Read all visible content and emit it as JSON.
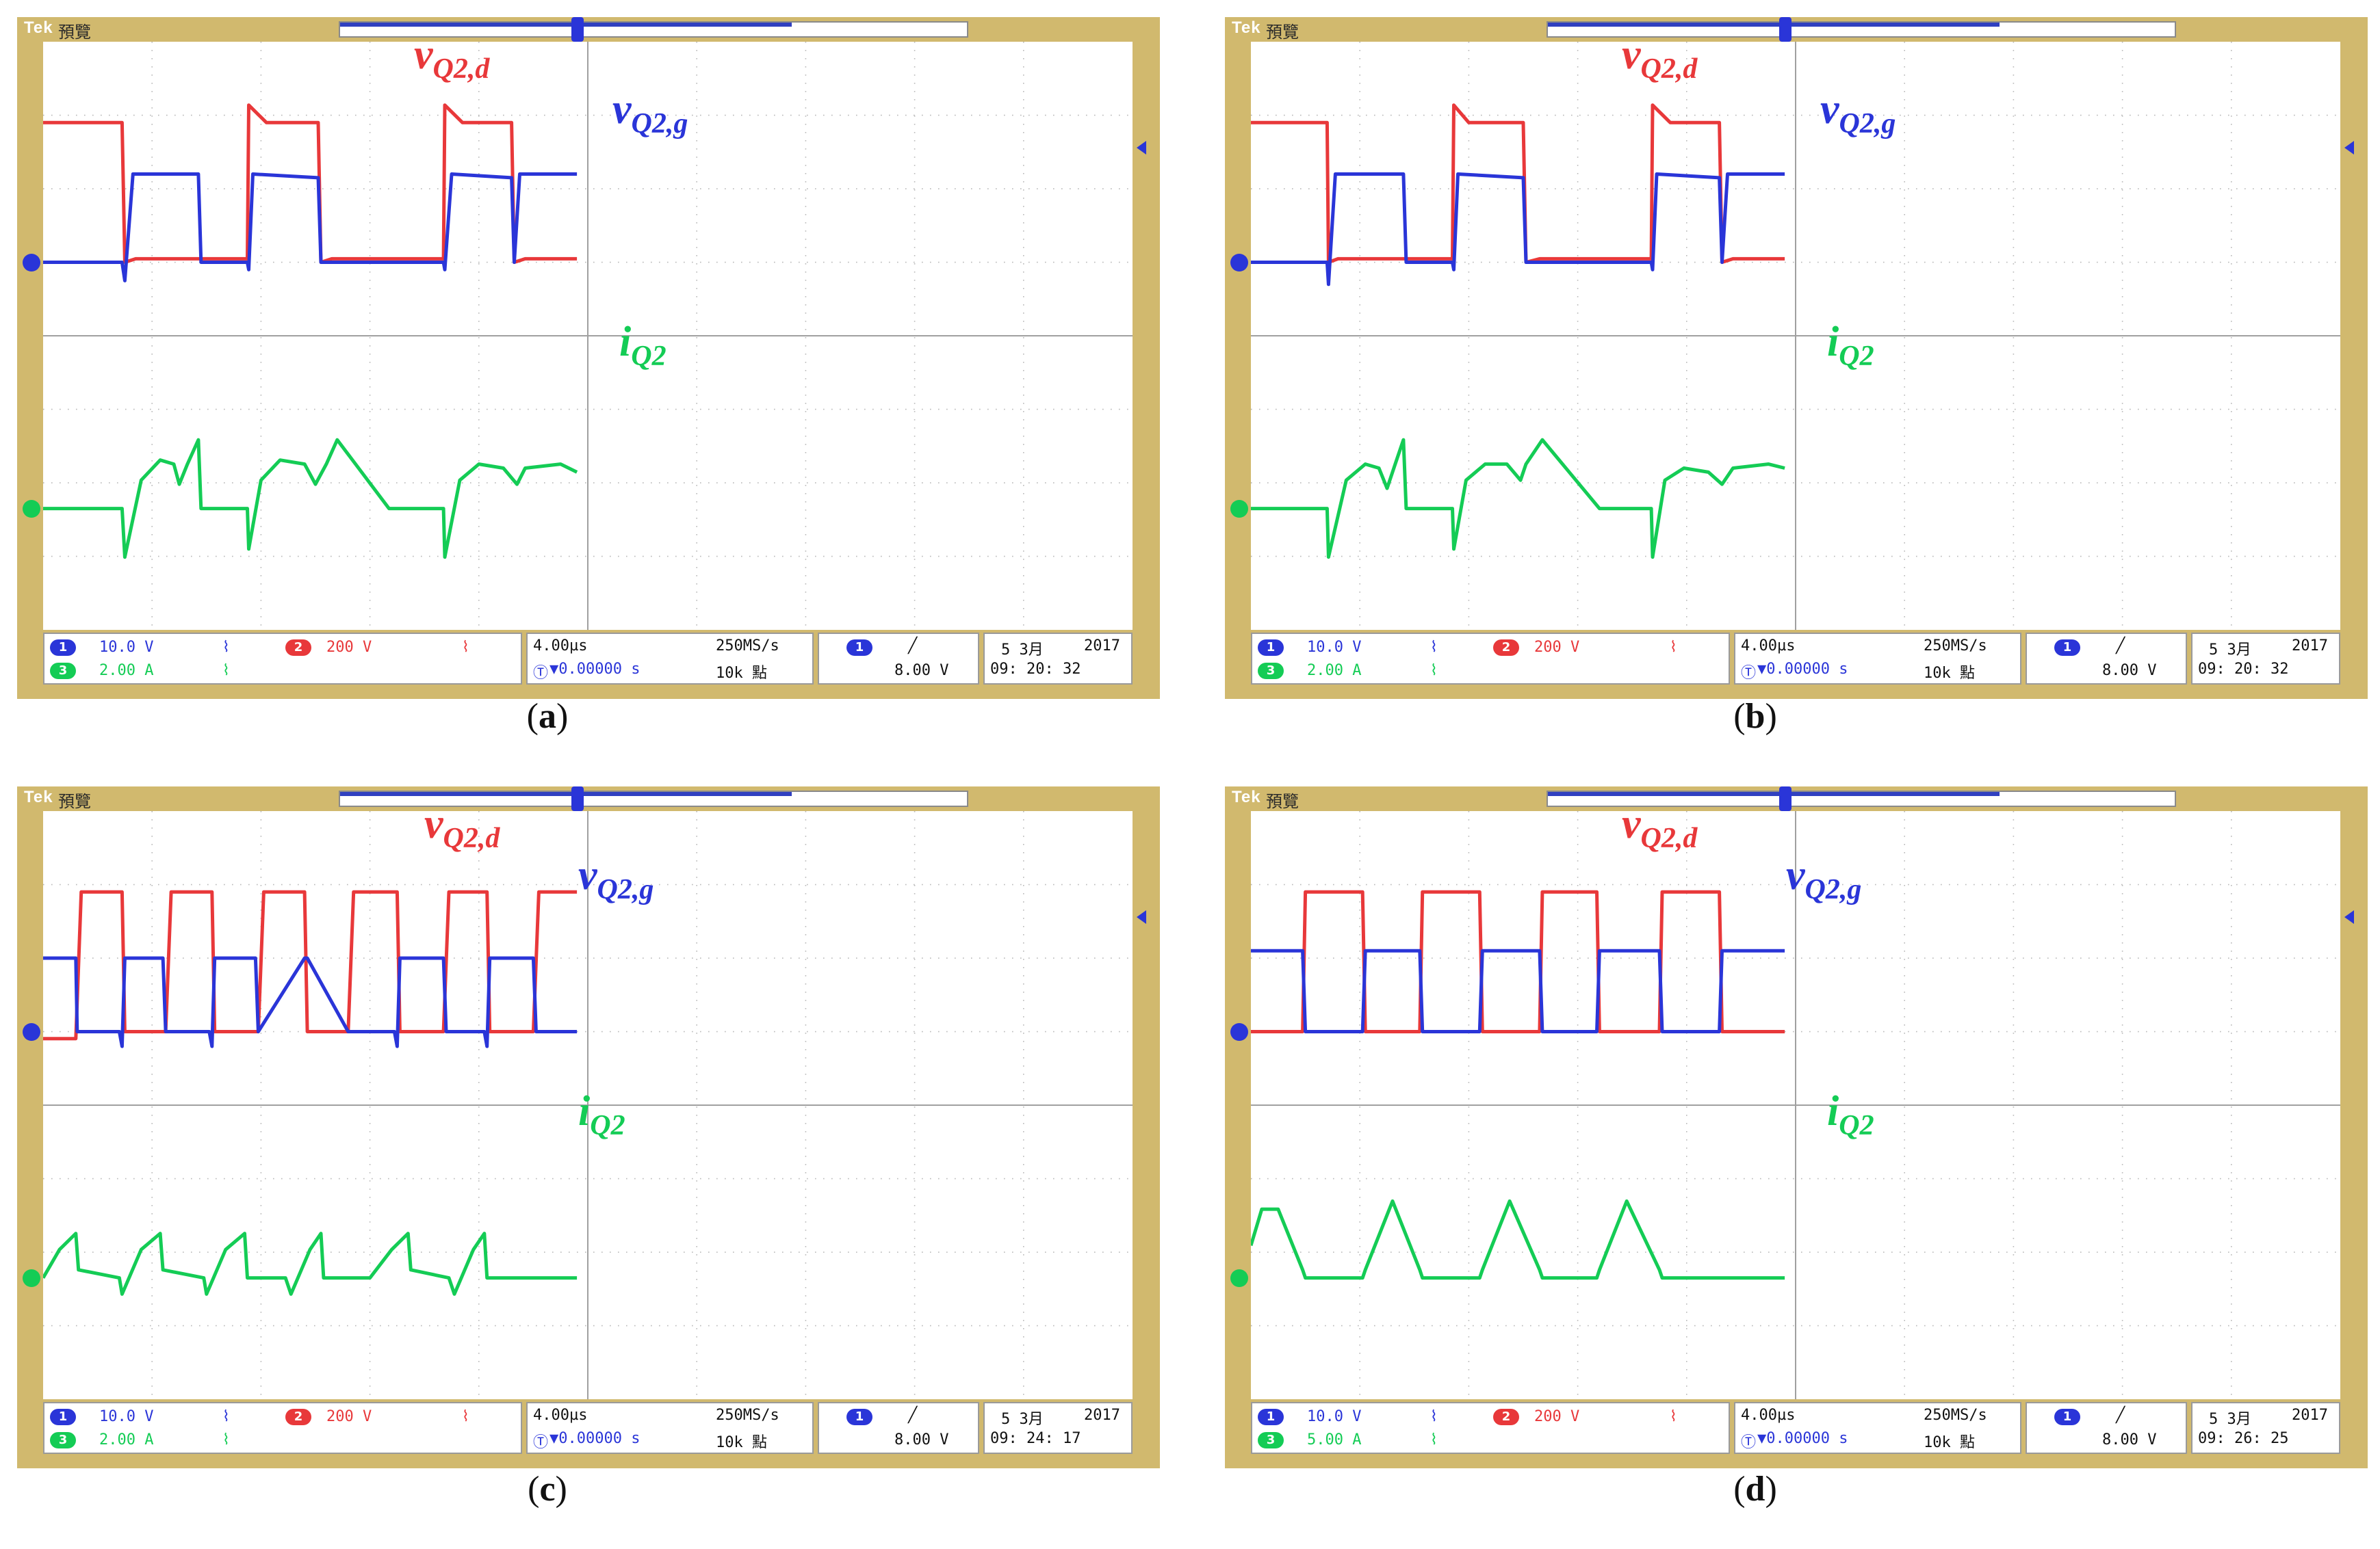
{
  "page": {
    "instrument_logo": "Tek",
    "instrument_status": "預覽",
    "colors": {
      "bezel": "#d1b96e",
      "vd": "#e8383a",
      "vg": "#2a35d8",
      "iq": "#14cc55",
      "grid": "#b8b8b8"
    }
  },
  "labels": {
    "vd": {
      "main": "v",
      "sub": "Q2,d"
    },
    "vg": {
      "main": "v",
      "sub": "Q2,g"
    },
    "iq": {
      "main": "i",
      "sub": "Q2"
    }
  },
  "panels": [
    {
      "caption": "a",
      "readout": {
        "ch1_num": "1",
        "ch1_scale": "10.0 V",
        "ch2_num": "2",
        "ch2_scale": "200 V",
        "ch3_num": "3",
        "ch3_scale": "2.00 A",
        "timebase": "4.00µs",
        "sample_rate": "250MS/s",
        "trigger_offset": "▼0.00000 s",
        "record_length": "10k 點",
        "trig_ch": "1",
        "trig_level": "8.00 V",
        "date": "5 3月",
        "year": "2017",
        "time": "09: 20: 32"
      },
      "chart_data": {
        "type": "line",
        "title": "",
        "x_divisions": 10,
        "y_divisions": 8,
        "time_per_div_us": 4.0,
        "x_unit": "µs",
        "series": [
          {
            "key": "vd",
            "scale": "200 V/div",
            "x": [
              0,
              2.9,
              3.0,
              3.4,
              5.7,
              7.5,
              7.55,
              8.2,
              10.1,
              10.2,
              10.6,
              12.8,
              14.7,
              14.75,
              15.4,
              17.2,
              17.3,
              17.7,
              19.6
            ],
            "y": [
              2.0,
              2.0,
              0.0,
              0.05,
              0.05,
              0.05,
              2.25,
              2.0,
              2.0,
              0.0,
              0.05,
              0.05,
              0.05,
              2.25,
              2.0,
              2.0,
              0.0,
              0.05,
              0.05
            ]
          },
          {
            "key": "vg",
            "scale": "10.0 V/div",
            "x": [
              0,
              2.9,
              3.0,
              3.3,
              5.7,
              5.8,
              7.5,
              7.55,
              7.7,
              10.1,
              10.2,
              12.8,
              12.9,
              14.7,
              14.75,
              15.0,
              17.2,
              17.3,
              17.5,
              19.6
            ],
            "y": [
              0,
              0,
              -0.25,
              1.2,
              1.2,
              0,
              0,
              -0.1,
              1.2,
              1.15,
              0,
              0,
              0,
              0,
              -0.1,
              1.2,
              1.15,
              0,
              1.2,
              1.2
            ]
          },
          {
            "key": "iq",
            "scale": "2.00 A/div",
            "x": [
              0,
              2.9,
              3.0,
              3.6,
              4.3,
              4.8,
              5.0,
              5.3,
              5.7,
              5.8,
              7.5,
              7.55,
              8.0,
              8.7,
              9.6,
              10.0,
              10.4,
              10.8,
              12.7,
              12.9,
              14.7,
              14.75,
              15.3,
              16.0,
              16.9,
              17.4,
              17.7,
              19.0,
              19.6
            ],
            "y": [
              0,
              0,
              -0.6,
              0.35,
              0.6,
              0.55,
              0.3,
              0.55,
              0.85,
              0,
              0,
              -0.5,
              0.35,
              0.6,
              0.55,
              0.3,
              0.55,
              0.85,
              0,
              0,
              0,
              -0.6,
              0.35,
              0.55,
              0.5,
              0.3,
              0.5,
              0.55,
              0.45
            ]
          }
        ]
      }
    },
    {
      "caption": "b",
      "readout": {
        "ch1_num": "1",
        "ch1_scale": "10.0 V",
        "ch2_num": "2",
        "ch2_scale": "200 V",
        "ch3_num": "3",
        "ch3_scale": "2.00 A",
        "timebase": "4.00µs",
        "sample_rate": "250MS/s",
        "trigger_offset": "▼0.00000 s",
        "record_length": "10k 點",
        "trig_ch": "1",
        "trig_level": "8.00 V",
        "date": "5 3月",
        "year": "2017",
        "time": "09: 20: 32"
      },
      "chart_data": {
        "type": "line",
        "title": "",
        "x_divisions": 10,
        "y_divisions": 8,
        "time_per_div_us": 4.0,
        "x_unit": "µs",
        "series": [
          {
            "key": "vd",
            "scale": "200 V/div",
            "x": [
              0,
              2.8,
              2.85,
              3.2,
              5.6,
              7.4,
              7.45,
              8.0,
              10.0,
              10.1,
              10.6,
              12.8,
              14.7,
              14.75,
              15.4,
              17.2,
              17.3,
              17.7,
              19.6
            ],
            "y": [
              2.0,
              2.0,
              0.0,
              0.05,
              0.05,
              0.05,
              2.25,
              2.0,
              2.0,
              0.0,
              0.05,
              0.05,
              0.05,
              2.25,
              2.0,
              2.0,
              0.0,
              0.05,
              0.05
            ]
          },
          {
            "key": "vg",
            "scale": "10.0 V/div",
            "x": [
              0,
              2.8,
              2.85,
              3.1,
              5.6,
              5.7,
              7.4,
              7.45,
              7.6,
              10.0,
              10.1,
              12.8,
              12.9,
              14.7,
              14.75,
              14.9,
              17.2,
              17.3,
              17.5,
              19.6
            ],
            "y": [
              0,
              0,
              -0.3,
              1.2,
              1.2,
              0,
              0,
              -0.1,
              1.2,
              1.15,
              0,
              0,
              0,
              0,
              -0.1,
              1.2,
              1.15,
              0,
              1.2,
              1.2
            ]
          },
          {
            "key": "iq",
            "scale": "2.00 A/div",
            "x": [
              0,
              2.8,
              2.85,
              3.5,
              4.2,
              4.7,
              5.0,
              5.3,
              5.6,
              5.7,
              7.4,
              7.45,
              7.9,
              8.6,
              9.4,
              9.9,
              10.1,
              10.7,
              12.8,
              12.9,
              14.7,
              14.75,
              15.2,
              15.9,
              16.8,
              17.3,
              17.7,
              19.0,
              19.6
            ],
            "y": [
              0,
              0,
              -0.6,
              0.35,
              0.55,
              0.5,
              0.25,
              0.55,
              0.85,
              0,
              0,
              -0.5,
              0.35,
              0.55,
              0.55,
              0.35,
              0.55,
              0.85,
              0,
              0,
              0,
              -0.6,
              0.35,
              0.5,
              0.45,
              0.3,
              0.5,
              0.55,
              0.5
            ]
          }
        ]
      }
    },
    {
      "caption": "c",
      "readout": {
        "ch1_num": "1",
        "ch1_scale": "10.0 V",
        "ch2_num": "2",
        "ch2_scale": "200 V",
        "ch3_num": "3",
        "ch3_scale": "2.00 A",
        "timebase": "4.00µs",
        "sample_rate": "250MS/s",
        "trigger_offset": "▼0.00000 s",
        "record_length": "10k 點",
        "trig_ch": "1",
        "trig_level": "8.00 V",
        "date": "5 3月",
        "year": "2017",
        "time": "09: 24: 17"
      },
      "chart_data": {
        "type": "line",
        "title": "",
        "x_divisions": 10,
        "y_divisions": 8,
        "time_per_div_us": 4.0,
        "x_unit": "µs",
        "series": [
          {
            "key": "vd",
            "scale": "200 V/div",
            "x": [
              0,
              1.2,
              1.4,
              2.9,
              3.0,
              4.5,
              4.7,
              6.2,
              6.3,
              7.9,
              8.1,
              9.6,
              9.7,
              11.2,
              11.4,
              13.0,
              13.1,
              14.7,
              14.9,
              16.3,
              16.4,
              18.0,
              18.2,
              19.6
            ],
            "y": [
              -0.1,
              -0.1,
              2.0,
              2.0,
              0.0,
              0.0,
              2.0,
              2.0,
              0.0,
              0.0,
              2.0,
              2.0,
              0.0,
              0.0,
              2.0,
              2.0,
              0.0,
              0.0,
              2.0,
              2.0,
              0.0,
              0.0,
              2.0,
              2.0
            ]
          },
          {
            "key": "vg",
            "scale": "10.0 V/div",
            "x": [
              0,
              1.2,
              1.25,
              2.8,
              2.9,
              3.0,
              4.4,
              4.5,
              6.1,
              6.2,
              6.3,
              7.8,
              7.9,
              9.6,
              9.7,
              11.2,
              11.3,
              12.9,
              13.0,
              13.1,
              14.7,
              14.8,
              16.2,
              16.3,
              16.4,
              18.0,
              18.1,
              19.6
            ],
            "y": [
              1.0,
              1.0,
              0.0,
              0.0,
              -0.2,
              1.0,
              1.0,
              0.0,
              0.0,
              -0.2,
              1.0,
              1.0,
              0.0,
              1.0,
              1.0,
              0.0,
              0.0,
              0.0,
              -0.2,
              1.0,
              1.0,
              0.0,
              0.0,
              -0.2,
              1.0,
              1.0,
              0.0,
              0.0
            ]
          },
          {
            "key": "iq",
            "scale": "2.00 A/div",
            "x": [
              0,
              0.6,
              1.2,
              1.3,
              2.8,
              2.9,
              3.6,
              4.3,
              4.4,
              5.9,
              6.0,
              6.7,
              7.4,
              7.5,
              8.9,
              9.1,
              9.8,
              10.2,
              10.3,
              11.9,
              12.0,
              12.8,
              13.4,
              13.5,
              14.9,
              15.1,
              15.8,
              16.2,
              16.3,
              17.9,
              18.0,
              19.6
            ],
            "y": [
              0.0,
              0.35,
              0.55,
              0.1,
              0.0,
              -0.2,
              0.35,
              0.55,
              0.1,
              0.0,
              -0.2,
              0.35,
              0.55,
              0.0,
              0.0,
              -0.2,
              0.35,
              0.55,
              0.0,
              0.0,
              0.0,
              0.35,
              0.55,
              0.1,
              0.0,
              -0.2,
              0.35,
              0.55,
              0.0,
              0.0,
              0.0,
              0.0
            ]
          }
        ]
      }
    },
    {
      "caption": "d",
      "readout": {
        "ch1_num": "1",
        "ch1_scale": "10.0 V",
        "ch2_num": "2",
        "ch2_scale": "200 V",
        "ch3_num": "3",
        "ch3_scale": "5.00 A",
        "timebase": "4.00µs",
        "sample_rate": "250MS/s",
        "trigger_offset": "▼0.00000 s",
        "record_length": "10k 點",
        "trig_ch": "1",
        "trig_level": "8.00 V",
        "date": "5 3月",
        "year": "2017",
        "time": "09: 26: 25"
      },
      "chart_data": {
        "type": "line",
        "title": "",
        "x_divisions": 10,
        "y_divisions": 8,
        "time_per_div_us": 4.0,
        "x_unit": "µs",
        "series": [
          {
            "key": "vd",
            "scale": "200 V/div",
            "x": [
              0,
              1.9,
              2.0,
              4.1,
              4.2,
              6.2,
              6.3,
              8.4,
              8.5,
              10.6,
              10.7,
              12.7,
              12.8,
              15.0,
              15.1,
              17.2,
              17.3,
              19.6
            ],
            "y": [
              0.0,
              0.0,
              2.0,
              2.0,
              0.0,
              0.0,
              2.0,
              2.0,
              0.0,
              0.0,
              2.0,
              2.0,
              0.0,
              0.0,
              2.0,
              2.0,
              0.0,
              0.0
            ]
          },
          {
            "key": "vg",
            "scale": "10.0 V/div",
            "x": [
              0,
              1.9,
              2.0,
              4.1,
              4.2,
              6.2,
              6.3,
              8.4,
              8.5,
              10.6,
              10.7,
              12.7,
              12.8,
              15.0,
              15.1,
              17.2,
              17.3,
              19.6
            ],
            "y": [
              1.1,
              1.1,
              0.0,
              0.0,
              1.1,
              1.1,
              0.0,
              0.0,
              1.1,
              1.1,
              0.0,
              0.0,
              1.1,
              1.1,
              0.0,
              0.0,
              1.1,
              1.1
            ]
          },
          {
            "key": "iq",
            "scale": "5.00 A/div",
            "x": [
              0,
              0.4,
              1.0,
              1.9,
              2.0,
              4.1,
              4.2,
              5.2,
              6.2,
              6.3,
              8.4,
              8.5,
              9.5,
              10.6,
              10.7,
              12.7,
              12.8,
              13.8,
              15.0,
              15.1,
              17.2,
              17.3,
              19.6
            ],
            "y": [
              0.4,
              0.85,
              0.85,
              0.1,
              0.0,
              0.0,
              0.1,
              0.95,
              0.1,
              0.0,
              0.0,
              0.1,
              0.95,
              0.1,
              0.0,
              0.0,
              0.1,
              0.95,
              0.1,
              0.0,
              0.0,
              0.0,
              0.0
            ]
          }
        ]
      }
    }
  ]
}
